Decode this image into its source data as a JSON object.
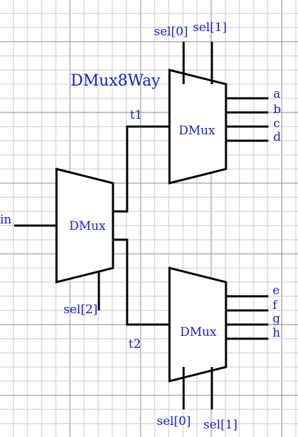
{
  "diagram": {
    "title": "DMux8Way",
    "blocks": {
      "input_dmux": "DMux",
      "top_dmux": "DMux",
      "bottom_dmux": "DMux"
    },
    "signals": {
      "in": "in",
      "sel2": "sel[2]",
      "t1": "t1",
      "t2": "t2",
      "top_sel0": "sel[0]",
      "top_sel1": "sel[1]",
      "bottom_sel0": "sel[0]",
      "bottom_sel1": "sel[1]"
    },
    "outputs": [
      "a",
      "b",
      "c",
      "d",
      "e",
      "f",
      "g",
      "h"
    ],
    "colors": {
      "label": "#1a1acc",
      "wire": "#000000",
      "grid_minor": "#c8c8c8",
      "grid_major": "#8a8a8a",
      "background": "#ffffff"
    }
  }
}
